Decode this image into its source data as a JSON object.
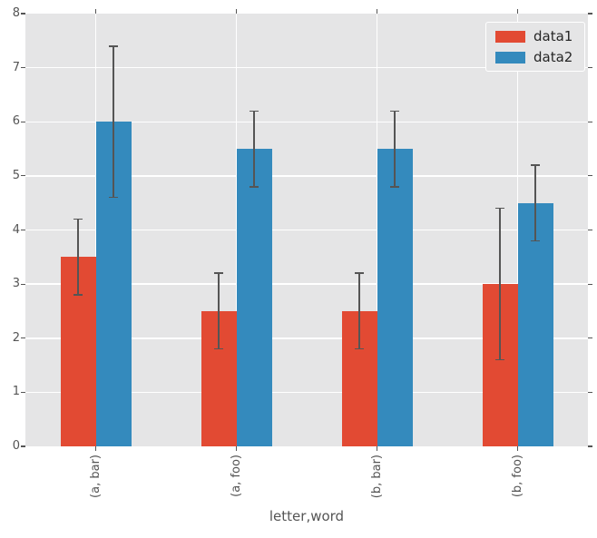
{
  "chart_data": {
    "type": "bar",
    "title": "",
    "xlabel": "letter,word",
    "ylabel": "",
    "categories": [
      "(a, bar)",
      "(a, foo)",
      "(b, bar)",
      "(b, foo)"
    ],
    "series": [
      {
        "name": "data1",
        "color": "#E24A33",
        "values": [
          3.5,
          2.5,
          2.5,
          3.0
        ],
        "errors": [
          0.7,
          0.7,
          0.7,
          1.4
        ]
      },
      {
        "name": "data2",
        "color": "#348ABD",
        "values": [
          6.0,
          5.5,
          5.5,
          4.5
        ],
        "errors": [
          1.4,
          0.7,
          0.7,
          0.7
        ]
      }
    ],
    "ylim": [
      0,
      8
    ],
    "yticks": [
      0,
      1,
      2,
      3,
      4,
      5,
      6,
      7,
      8
    ],
    "grid": true,
    "legend_position": "upper right",
    "style": {
      "plot_bg": "#E5E5E6",
      "grid_color": "#FFFFFF",
      "tick_color": "#555555",
      "tick_label_color": "#555555",
      "axis_label_color": "#555555",
      "legend_bg": "#E5E5E6",
      "legend_border": "#FFFFFF",
      "legend_text_color": "#262626",
      "errorbar_color": "#555555",
      "page_bg": "#FFFFFF"
    }
  }
}
